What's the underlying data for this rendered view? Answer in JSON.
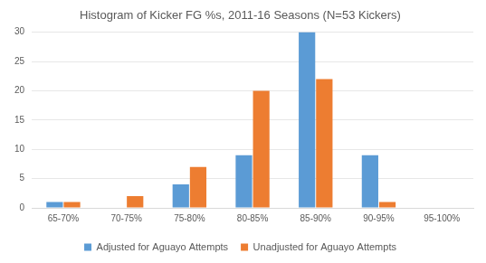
{
  "chart_data": {
    "type": "bar",
    "title": "Histogram of Kicker FG %s, 2011-16 Seasons (N=53 Kickers)",
    "categories": [
      "65-70%",
      "70-75%",
      "75-80%",
      "80-85%",
      "85-90%",
      "90-95%",
      "95-100%"
    ],
    "series": [
      {
        "name": "Adjusted for Aguayo Attempts",
        "color": "#5b9bd5",
        "values": [
          1,
          0,
          4,
          9,
          30,
          9,
          0
        ]
      },
      {
        "name": "Unadjusted for Aguayo Attempts",
        "color": "#ed7d31",
        "values": [
          1,
          2,
          7,
          20,
          22,
          1,
          0
        ]
      }
    ],
    "ylim": [
      0,
      30
    ],
    "yticks": [
      0,
      5,
      10,
      15,
      20,
      25,
      30
    ],
    "grid": true,
    "legend": "bottom"
  }
}
